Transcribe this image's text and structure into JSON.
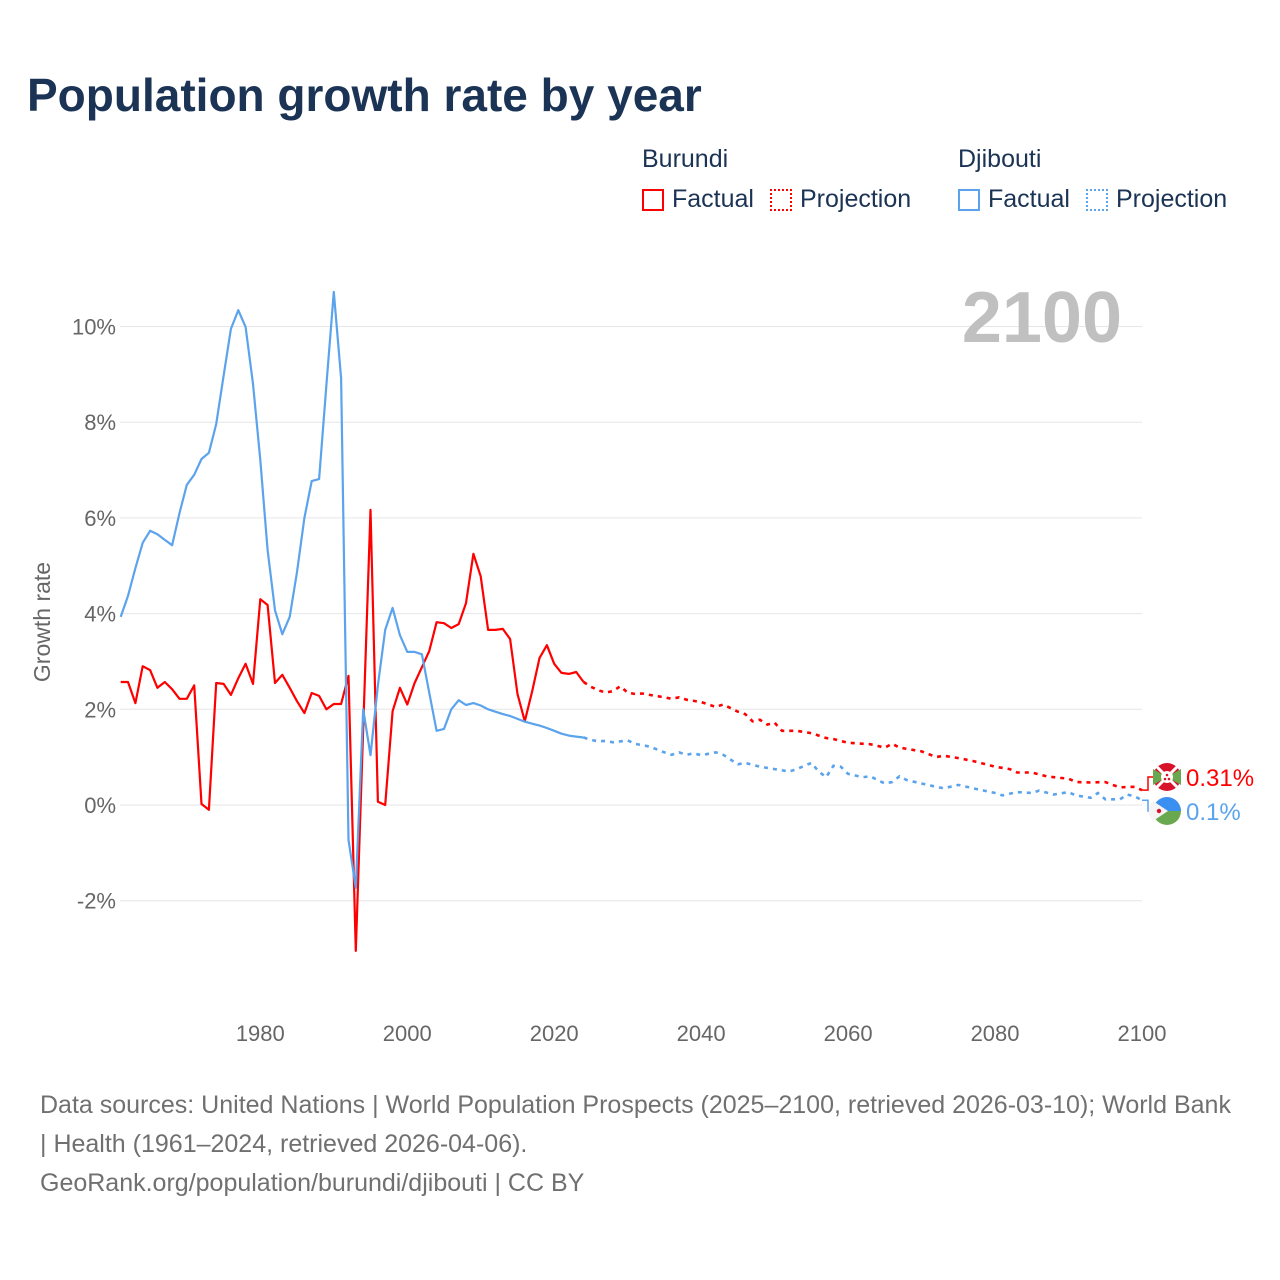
{
  "title": "Population growth rate by year",
  "legend": [
    {
      "name": "Burundi",
      "color": "#ff0000",
      "factual": "Factual",
      "projection": "Projection"
    },
    {
      "name": "Djibouti",
      "color": "#5ba3ec",
      "factual": "Factual",
      "projection": "Projection"
    }
  ],
  "year_overlay": "2100",
  "footer": {
    "line1": "Data sources: United Nations | World Population Prospects (2025–2100, retrieved 2026-03-10); World Bank | Health (1961–2024, retrieved 2026-04-06).",
    "line2": "GeoRank.org/population/burundi/djibouti | CC BY"
  },
  "chart_data": {
    "type": "line",
    "title": "Population growth rate by year",
    "ylabel": "Growth rate",
    "xlabel": "",
    "xlim": [
      1961,
      2100
    ],
    "ylim": [
      -4,
      11
    ],
    "xticks": [
      1980,
      2000,
      2020,
      2040,
      2060,
      2080,
      2100
    ],
    "xtick_labels": [
      "1980",
      "2000",
      "2020",
      "2040",
      "2060",
      "2080",
      "2100"
    ],
    "yticks": [
      -2,
      0,
      2,
      4,
      6,
      8,
      10
    ],
    "ytick_labels": [
      "-2%",
      "0%",
      "2%",
      "4%",
      "6%",
      "8%",
      "10%"
    ],
    "grid": true,
    "legend_position": "top-right",
    "series": [
      {
        "name": "Burundi",
        "color": "#ff0000",
        "end_label": "0.31%",
        "flag": "burundi-flag",
        "factual": {
          "x": [
            1961,
            1962,
            1963,
            1964,
            1965,
            1966,
            1967,
            1968,
            1969,
            1970,
            1971,
            1972,
            1973,
            1974,
            1975,
            1976,
            1977,
            1978,
            1979,
            1980,
            1981,
            1982,
            1983,
            1984,
            1985,
            1986,
            1987,
            1988,
            1989,
            1990,
            1991,
            1992,
            1993,
            1994,
            1995,
            1996,
            1997,
            1998,
            1999,
            2000,
            2001,
            2002,
            2003,
            2004,
            2005,
            2006,
            2007,
            2008,
            2009,
            2010,
            2011,
            2012,
            2013,
            2014,
            2015,
            2016,
            2017,
            2018,
            2019,
            2020,
            2021,
            2022,
            2023,
            2024
          ],
          "y": [
            2.57,
            2.57,
            2.13,
            2.9,
            2.82,
            2.45,
            2.57,
            2.42,
            2.22,
            2.22,
            2.5,
            0.02,
            -0.1,
            2.55,
            2.53,
            2.3,
            2.65,
            2.95,
            2.53,
            4.3,
            4.18,
            2.55,
            2.72,
            2.45,
            2.17,
            1.92,
            2.34,
            2.28,
            2.0,
            2.11,
            2.11,
            2.7,
            -3.05,
            1.6,
            6.17,
            0.07,
            0.0,
            1.96,
            2.45,
            2.1,
            2.55,
            2.88,
            3.22,
            3.82,
            3.8,
            3.7,
            3.78,
            4.22,
            5.25,
            4.78,
            3.66,
            3.66,
            3.68,
            3.47,
            2.32,
            1.75,
            2.38,
            3.07,
            3.34,
            2.95,
            2.76,
            2.74,
            2.78,
            2.57
          ]
        },
        "projection": {
          "x": [
            2024,
            2025,
            2026,
            2027,
            2028,
            2029,
            2030,
            2031,
            2032,
            2033,
            2035,
            2036,
            2037,
            2038,
            2040,
            2042,
            2043,
            2045,
            2046,
            2047,
            2048,
            2049,
            2050,
            2051,
            2053,
            2055,
            2057,
            2058,
            2060,
            2063,
            2065,
            2066,
            2067,
            2070,
            2072,
            2073,
            2075,
            2077,
            2080,
            2082,
            2083,
            2085,
            2087,
            2088,
            2090,
            2091,
            2093,
            2095,
            2096,
            2097,
            2099,
            2100
          ],
          "y": [
            2.57,
            2.47,
            2.4,
            2.35,
            2.38,
            2.48,
            2.35,
            2.32,
            2.33,
            2.3,
            2.25,
            2.22,
            2.25,
            2.2,
            2.15,
            2.05,
            2.1,
            1.95,
            1.9,
            1.75,
            1.78,
            1.68,
            1.72,
            1.55,
            1.55,
            1.5,
            1.4,
            1.38,
            1.3,
            1.27,
            1.2,
            1.28,
            1.2,
            1.12,
            1.0,
            1.03,
            0.98,
            0.92,
            0.8,
            0.75,
            0.68,
            0.68,
            0.6,
            0.58,
            0.55,
            0.48,
            0.47,
            0.48,
            0.42,
            0.37,
            0.38,
            0.31
          ]
        }
      },
      {
        "name": "Djibouti",
        "color": "#5ba3ec",
        "end_label": "0.1%",
        "flag": "djibouti-flag",
        "factual": {
          "x": [
            1961,
            1962,
            1963,
            1964,
            1965,
            1966,
            1967,
            1968,
            1969,
            1970,
            1971,
            1972,
            1973,
            1974,
            1975,
            1976,
            1977,
            1978,
            1979,
            1980,
            1981,
            1982,
            1983,
            1984,
            1985,
            1986,
            1987,
            1988,
            1989,
            1990,
            1991,
            1992,
            1993,
            1994,
            1995,
            1996,
            1997,
            1998,
            1999,
            2000,
            2001,
            2002,
            2003,
            2004,
            2005,
            2006,
            2007,
            2008,
            2009,
            2010,
            2011,
            2012,
            2013,
            2014,
            2015,
            2016,
            2017,
            2018,
            2019,
            2020,
            2021,
            2022,
            2023,
            2024
          ],
          "y": [
            3.93,
            4.37,
            4.95,
            5.48,
            5.73,
            5.66,
            5.54,
            5.43,
            6.1,
            6.69,
            6.9,
            7.23,
            7.36,
            7.96,
            8.97,
            9.95,
            10.34,
            9.99,
            8.8,
            7.21,
            5.33,
            4.07,
            3.57,
            3.93,
            4.87,
            6.0,
            6.77,
            6.81,
            8.78,
            10.72,
            8.92,
            -0.73,
            -1.73,
            2.0,
            1.04,
            2.5,
            3.66,
            4.12,
            3.55,
            3.2,
            3.2,
            3.15,
            2.34,
            1.55,
            1.59,
            2.0,
            2.19,
            2.09,
            2.13,
            2.08,
            2.0,
            1.95,
            1.9,
            1.86,
            1.8,
            1.74,
            1.7,
            1.66,
            1.61,
            1.55,
            1.49,
            1.45,
            1.43,
            1.41
          ]
        },
        "projection": {
          "x": [
            2024,
            2025,
            2026,
            2027,
            2028,
            2030,
            2031,
            2033,
            2035,
            2036,
            2037,
            2038,
            2039,
            2040,
            2042,
            2043,
            2045,
            2046,
            2048,
            2050,
            2052,
            2053,
            2055,
            2056,
            2057,
            2058,
            2059,
            2060,
            2062,
            2063,
            2065,
            2066,
            2067,
            2068,
            2070,
            2072,
            2073,
            2075,
            2077,
            2080,
            2081,
            2083,
            2085,
            2086,
            2088,
            2090,
            2091,
            2093,
            2094,
            2095,
            2097,
            2098,
            2099,
            2100
          ],
          "y": [
            1.41,
            1.36,
            1.33,
            1.34,
            1.31,
            1.35,
            1.28,
            1.22,
            1.1,
            1.05,
            1.1,
            1.05,
            1.08,
            1.04,
            1.1,
            1.05,
            0.85,
            0.88,
            0.8,
            0.75,
            0.7,
            0.75,
            0.88,
            0.7,
            0.58,
            0.82,
            0.8,
            0.65,
            0.58,
            0.6,
            0.45,
            0.48,
            0.6,
            0.52,
            0.45,
            0.38,
            0.35,
            0.42,
            0.35,
            0.25,
            0.2,
            0.27,
            0.25,
            0.3,
            0.22,
            0.27,
            0.2,
            0.15,
            0.25,
            0.12,
            0.12,
            0.22,
            0.18,
            0.1
          ]
        }
      }
    ]
  }
}
